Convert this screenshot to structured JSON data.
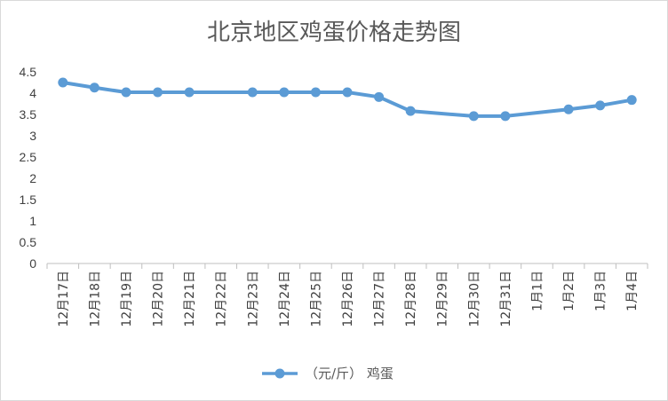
{
  "chart_data": {
    "type": "line",
    "title": "北京地区鸡蛋价格走势图",
    "xlabel": "",
    "ylabel": "",
    "categories": [
      "12月17日",
      "12月18日",
      "12月19日",
      "12月20日",
      "12月21日",
      "12月22日",
      "12月23日",
      "12月24日",
      "12月25日",
      "12月26日",
      "12月27日",
      "12月28日",
      "12月29日",
      "12月30日",
      "12月31日",
      "1月1日",
      "1月2日",
      "1月3日",
      "1月4日"
    ],
    "series": [
      {
        "name": "（元/斤） 鸡蛋",
        "color": "#5b9bd5",
        "values": [
          4.25,
          4.13,
          4.02,
          4.02,
          4.02,
          null,
          4.02,
          4.02,
          4.02,
          4.02,
          3.91,
          3.58,
          null,
          3.46,
          3.46,
          null,
          3.62,
          3.71,
          3.84
        ]
      }
    ],
    "ylim": [
      0,
      4.5
    ],
    "yticks": [
      "0",
      "0.5",
      "1",
      "1.5",
      "2",
      "2.5",
      "3",
      "3.5",
      "4",
      "4.5"
    ],
    "grid": false,
    "legend_position": "bottom"
  }
}
